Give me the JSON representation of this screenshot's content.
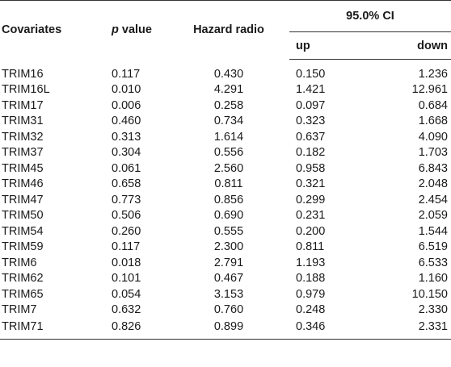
{
  "header": {
    "covariates": "Covariates",
    "p_value_italic": "p",
    "p_value_rest": " value",
    "hazard": "Hazard radio",
    "ci": "95.0% CI",
    "up": "up",
    "down": "down"
  },
  "rows": [
    {
      "cov": "TRIM16",
      "p": "0.117",
      "hr": "0.430",
      "up": "0.150",
      "down": "1.236"
    },
    {
      "cov": "TRIM16L",
      "p": "0.010",
      "hr": "4.291",
      "up": "1.421",
      "down": "12.961"
    },
    {
      "cov": "TRIM17",
      "p": "0.006",
      "hr": "0.258",
      "up": "0.097",
      "down": "0.684"
    },
    {
      "cov": "TRIM31",
      "p": "0.460",
      "hr": "0.734",
      "up": "0.323",
      "down": "1.668"
    },
    {
      "cov": "TRIM32",
      "p": "0.313",
      "hr": "1.614",
      "up": "0.637",
      "down": "4.090"
    },
    {
      "cov": "TRIM37",
      "p": "0.304",
      "hr": "0.556",
      "up": "0.182",
      "down": "1.703"
    },
    {
      "cov": "TRIM45",
      "p": "0.061",
      "hr": "2.560",
      "up": "0.958",
      "down": "6.843"
    },
    {
      "cov": "TRIM46",
      "p": "0.658",
      "hr": "0.811",
      "up": "0.321",
      "down": "2.048"
    },
    {
      "cov": "TRIM47",
      "p": "0.773",
      "hr": "0.856",
      "up": "0.299",
      "down": "2.454"
    },
    {
      "cov": "TRIM50",
      "p": "0.506",
      "hr": "0.690",
      "up": "0.231",
      "down": "2.059"
    },
    {
      "cov": "TRIM54",
      "p": "0.260",
      "hr": "0.555",
      "up": "0.200",
      "down": "1.544"
    },
    {
      "cov": "TRIM59",
      "p": "0.117",
      "hr": "2.300",
      "up": "0.811",
      "down": "6.519"
    },
    {
      "cov": "TRIM6",
      "p": "0.018",
      "hr": "2.791",
      "up": "1.193",
      "down": "6.533"
    },
    {
      "cov": "TRIM62",
      "p": "0.101",
      "hr": "0.467",
      "up": "0.188",
      "down": "1.160"
    },
    {
      "cov": "TRIM65",
      "p": "0.054",
      "hr": "3.153",
      "up": "0.979",
      "down": "10.150"
    },
    {
      "cov": "TRIM7",
      "p": "0.632",
      "hr": "0.760",
      "up": "0.248",
      "down": "2.330"
    },
    {
      "cov": "TRIM71",
      "p": "0.826",
      "hr": "0.899",
      "up": "0.346",
      "down": "2.331"
    }
  ]
}
